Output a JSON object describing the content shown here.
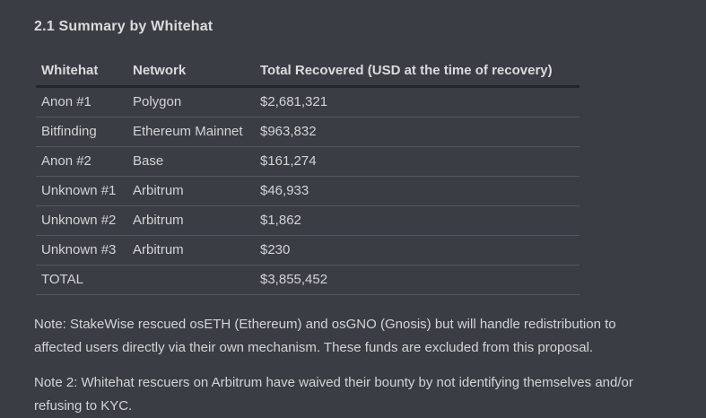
{
  "theme": {
    "background": "#3a3d44",
    "text": "#d2d4d6",
    "heading": "#dadbdd",
    "header_rule": "#24262b",
    "row_rule": "#55585e"
  },
  "section": {
    "title": "2.1 Summary by Whitehat"
  },
  "table": {
    "columns": [
      "Whitehat",
      "Network",
      "Total Recovered (USD at the time of recovery)"
    ],
    "rows": [
      [
        "Anon #1",
        "Polygon",
        "$2,681,321"
      ],
      [
        "Bitfinding",
        "Ethereum Mainnet",
        "$963,832"
      ],
      [
        "Anon #2",
        "Base",
        "$161,274"
      ],
      [
        "Unknown #1",
        "Arbitrum",
        "$46,933"
      ],
      [
        "Unknown #2",
        "Arbitrum",
        "$1,862"
      ],
      [
        "Unknown #3",
        "Arbitrum",
        "$230"
      ],
      [
        "TOTAL",
        "",
        "$3,855,452"
      ]
    ]
  },
  "notes": [
    "Note: StakeWise rescued osETH (Ethereum) and osGNO (Gnosis) but will handle redistribution to affected users directly via their own mechanism. These funds are excluded from this proposal.",
    "Note 2: Whitehat rescuers on Arbitrum have waived their bounty by not identifying themselves and/or refusing to KYC."
  ]
}
